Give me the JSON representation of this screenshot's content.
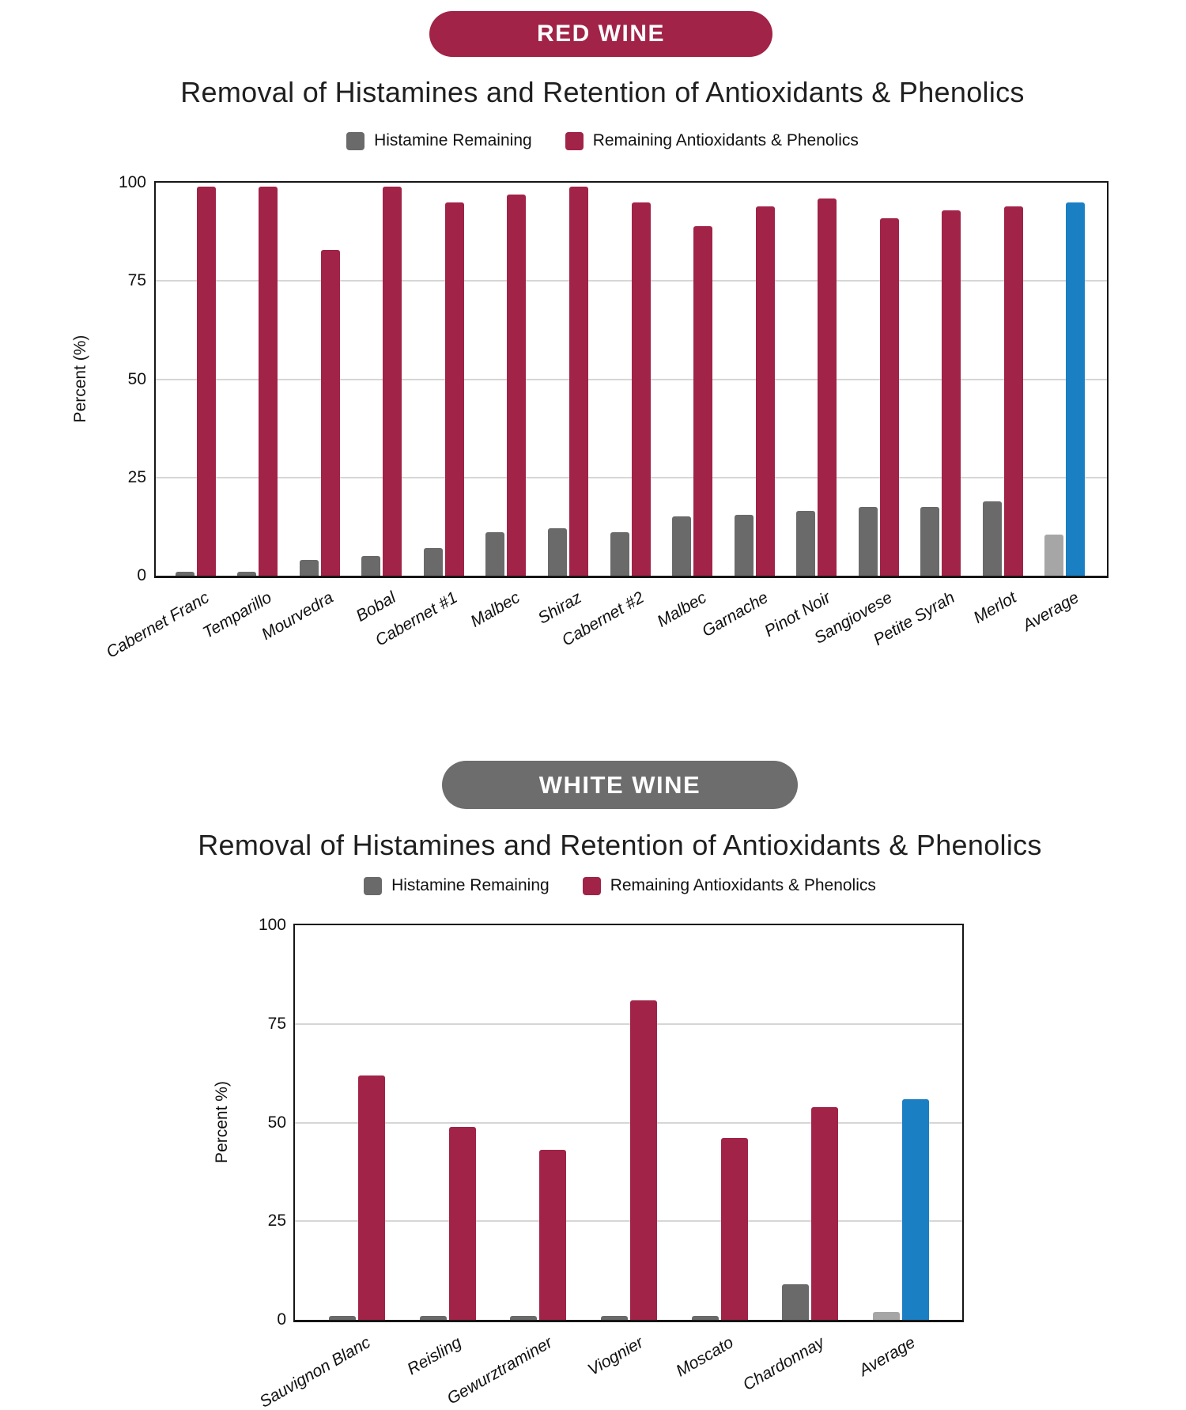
{
  "chart_data": [
    {
      "type": "bar",
      "badge": "RED WINE",
      "badge_color": "#a12348",
      "title": "Removal of Histamines and Retention of Antioxidants & Phenolics",
      "ylabel": "Percent (%)",
      "yticks": [
        100,
        75,
        50,
        25,
        0
      ],
      "ylim": [
        0,
        100
      ],
      "gridlines": [
        25,
        50,
        75
      ],
      "grid": "on",
      "legend_position": "top",
      "legend": [
        {
          "label": "Histamine Remaining",
          "color": "#6a6a6a"
        },
        {
          "label": "Remaining Antioxidants & Phenolics",
          "color": "#a12348"
        }
      ],
      "categories": [
        "Cabernet Franc",
        "Temparillo",
        "Mourvedra",
        "Bobal",
        "Cabernet #1",
        "Malbec",
        "Shiraz",
        "Cabernet #2",
        "Malbec",
        "Garnache",
        "Pinot Noir",
        "Sangiovese",
        "Petite Syrah",
        "Merlot",
        "Average"
      ],
      "series": [
        {
          "name": "Histamine Remaining",
          "color": "#6a6a6a",
          "values": [
            1,
            1,
            4,
            5,
            7,
            11,
            12,
            11,
            15,
            15.5,
            16.5,
            17.5,
            17.5,
            19,
            10.5
          ]
        },
        {
          "name": "Remaining Antioxidants & Phenolics",
          "color": "#a12348",
          "values": [
            99,
            99,
            83,
            99,
            95,
            97,
            99,
            95,
            89,
            94,
            96,
            91,
            93,
            94,
            95
          ]
        }
      ],
      "average_category": "Average",
      "average_colors": {
        "histamine": "#a6a6a6",
        "antioxidants": "#1b7fc4"
      }
    },
    {
      "type": "bar",
      "badge": "WHITE WINE",
      "badge_color": "#6d6d6d",
      "title": "Removal of Histamines and Retention of Antioxidants & Phenolics",
      "ylabel": "Percent %)",
      "yticks": [
        100,
        75,
        50,
        25,
        0
      ],
      "ylim": [
        0,
        100
      ],
      "gridlines": [
        25,
        50,
        75
      ],
      "grid": "on",
      "legend_position": "top",
      "legend": [
        {
          "label": "Histamine Remaining",
          "color": "#6a6a6a"
        },
        {
          "label": "Remaining Antioxidants & Phenolics",
          "color": "#a12348"
        }
      ],
      "categories": [
        "Sauvignon Blanc",
        "Reisling",
        "Gewurztraminer",
        "Viognier",
        "Moscato",
        "Chardonnay",
        "Average"
      ],
      "series": [
        {
          "name": "Histamine Remaining",
          "color": "#6a6a6a",
          "values": [
            1,
            1,
            1,
            1,
            1,
            9,
            2
          ]
        },
        {
          "name": "Remaining Antioxidants & Phenolics",
          "color": "#a12348",
          "values": [
            62,
            49,
            43,
            81,
            46,
            54,
            56
          ]
        }
      ],
      "average_category": "Average",
      "average_colors": {
        "histamine": "#a6a6a6",
        "antioxidants": "#1b7fc4"
      }
    }
  ]
}
